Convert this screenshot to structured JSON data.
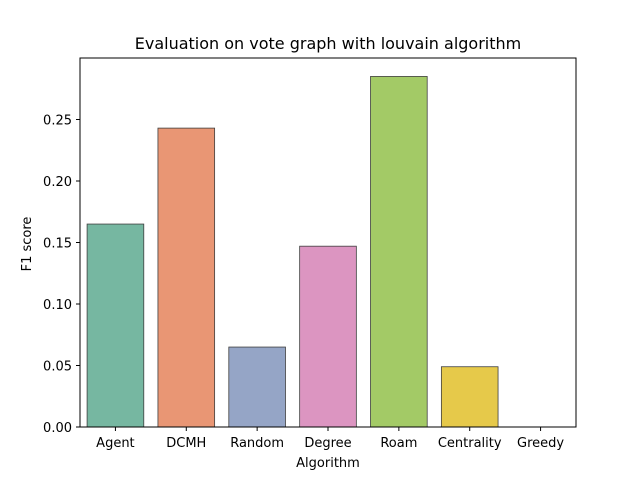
{
  "chart_data": {
    "type": "bar",
    "title": "Evaluation on vote graph with louvain algorithm",
    "xlabel": "Algorithm",
    "ylabel": "F1 score",
    "categories": [
      "Agent",
      "DCMH",
      "Random",
      "Degree",
      "Roam",
      "Centrality",
      "Greedy"
    ],
    "values": [
      0.165,
      0.243,
      0.065,
      0.147,
      0.285,
      0.049,
      0.0
    ],
    "colors": [
      "#76b7a1",
      "#e99674",
      "#95a5c6",
      "#dc95c1",
      "#a3ca66",
      "#e6c94a",
      "#e5c494"
    ],
    "bar_edge_color": "#3f3f3f",
    "ylim": [
      0.0,
      0.3
    ],
    "yticks": [
      0.0,
      0.05,
      0.1,
      0.15,
      0.2,
      0.25
    ],
    "ytick_labels": [
      "0.00",
      "0.05",
      "0.10",
      "0.15",
      "0.20",
      "0.25"
    ],
    "grid": false,
    "legend": "none"
  }
}
